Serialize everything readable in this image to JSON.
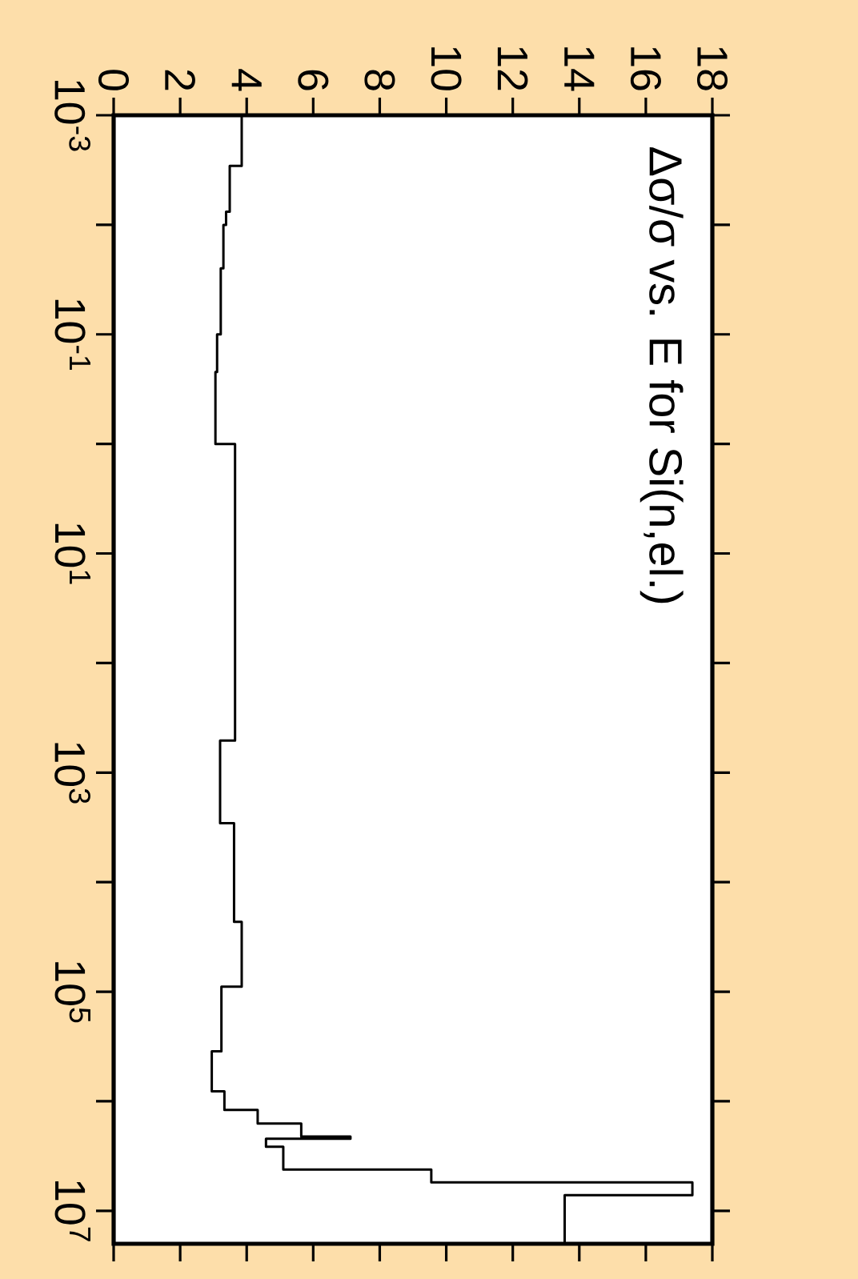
{
  "chart_data": {
    "type": "line",
    "title": "Δσ/σ vs. E for Si(n,el.)",
    "log": "y",
    "color": "#000000",
    "xlim": [
      0,
      18
    ],
    "ylim": [
      20000000.0,
      0.001
    ],
    "xticks": [
      0,
      2,
      4,
      6,
      8,
      10,
      12,
      14,
      16,
      18
    ],
    "yticks": [
      {
        "value": 0.001,
        "label": "10$^{-3}$"
      },
      {
        "value": 0.01,
        "label": null
      },
      {
        "value": 0.1,
        "label": "10$^{-1}$"
      },
      {
        "value": 1,
        "label": null
      },
      {
        "value": 10,
        "label": "10$^{1}$"
      },
      {
        "value": 100,
        "label": null
      },
      {
        "value": 1000,
        "label": "10$^{3}$"
      },
      {
        "value": 10000,
        "label": null
      },
      {
        "value": 100000,
        "label": "10$^{5}$"
      },
      {
        "value": 1000000,
        "label": null
      },
      {
        "value": 10000000,
        "label": "10$^{7}$"
      }
    ],
    "x": [
      3.85,
      3.85,
      3.49,
      3.49,
      3.38,
      3.38,
      3.3,
      3.3,
      3.22,
      3.22,
      3.11,
      3.11,
      3.06,
      3.06,
      3.65,
      3.65,
      3.2,
      3.2,
      3.62,
      3.62,
      3.85,
      3.85,
      3.24,
      3.24,
      2.95,
      2.95,
      3.33,
      3.33,
      4.33,
      4.33,
      5.64,
      5.64,
      7.12,
      7.12,
      4.58,
      4.58,
      5.1,
      5.1,
      9.55,
      9.55,
      17.4,
      17.4,
      13.56,
      13.56
    ],
    "values": [
      0.001,
      0.0029,
      0.0029,
      0.0076,
      0.0076,
      0.01,
      0.01,
      0.025,
      0.025,
      0.1,
      0.1,
      0.22,
      0.22,
      1,
      1,
      510,
      510,
      2900,
      2900,
      23000,
      23000,
      90000,
      90000,
      350000,
      350000,
      810000,
      810000,
      1200000,
      1200000,
      1600000,
      1600000,
      2100000,
      2100000,
      2200000,
      2200000,
      2600000,
      2600000,
      4200000,
      4200000,
      5500000,
      5500000,
      7200000,
      7200000,
      20000000
    ]
  }
}
